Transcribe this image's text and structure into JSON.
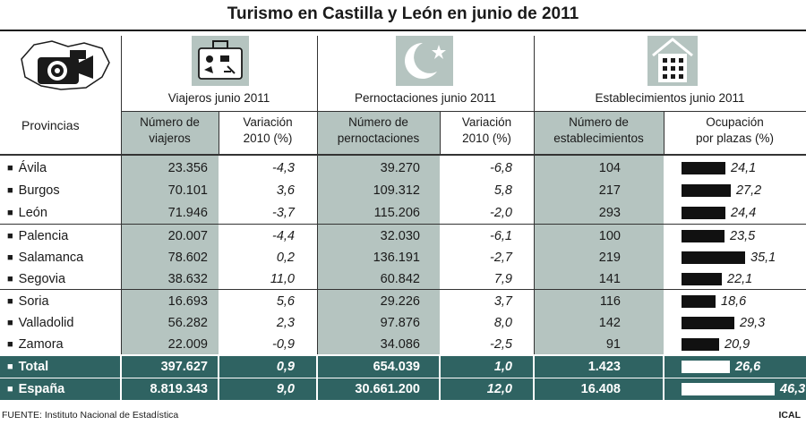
{
  "chart_data": {
    "type": "table",
    "title": "Turismo en Castilla y León en junio de 2011",
    "row_header": "Provincias",
    "groups": [
      {
        "label": "Viajeros junio 2011",
        "icon": "suitcase-icon"
      },
      {
        "label": "Pernoctaciones junio 2011",
        "icon": "moon-star-icon"
      },
      {
        "label": "Establecimientos junio 2011",
        "icon": "building-icon"
      }
    ],
    "columns": [
      {
        "key": "viajeros",
        "line1": "Número de",
        "line2": "viajeros"
      },
      {
        "key": "var_viajeros",
        "line1": "Variación",
        "line2": "2010 (%)"
      },
      {
        "key": "pernoctaciones",
        "line1": "Número de",
        "line2": "pernoctaciones"
      },
      {
        "key": "var_pernoctaciones",
        "line1": "Variación",
        "line2": "2010 (%)"
      },
      {
        "key": "establecimientos",
        "line1": "Número de",
        "line2": "establecimientos"
      },
      {
        "key": "ocupacion",
        "line1": "Ocupación",
        "line2": "por plazas (%)"
      }
    ],
    "rows": [
      {
        "provincia": "Ávila",
        "viajeros": "23.356",
        "var_viajeros": "-4,3",
        "pernoctaciones": "39.270",
        "var_pernoctaciones": "-6,8",
        "establecimientos": "104",
        "ocupacion": "24,1",
        "ocupacion_value": 24.1
      },
      {
        "provincia": "Burgos",
        "viajeros": "70.101",
        "var_viajeros": "3,6",
        "pernoctaciones": "109.312",
        "var_pernoctaciones": "5,8",
        "establecimientos": "217",
        "ocupacion": "27,2",
        "ocupacion_value": 27.2
      },
      {
        "provincia": "León",
        "viajeros": "71.946",
        "var_viajeros": "-3,7",
        "pernoctaciones": "115.206",
        "var_pernoctaciones": "-2,0",
        "establecimientos": "293",
        "ocupacion": "24,4",
        "ocupacion_value": 24.4
      },
      {
        "provincia": "Palencia",
        "viajeros": "20.007",
        "var_viajeros": "-4,4",
        "pernoctaciones": "32.030",
        "var_pernoctaciones": "-6,1",
        "establecimientos": "100",
        "ocupacion": "23,5",
        "ocupacion_value": 23.5
      },
      {
        "provincia": "Salamanca",
        "viajeros": "78.602",
        "var_viajeros": "0,2",
        "pernoctaciones": "136.191",
        "var_pernoctaciones": "-2,7",
        "establecimientos": "219",
        "ocupacion": "35,1",
        "ocupacion_value": 35.1
      },
      {
        "provincia": "Segovia",
        "viajeros": "38.632",
        "var_viajeros": "11,0",
        "pernoctaciones": "60.842",
        "var_pernoctaciones": "7,9",
        "establecimientos": "141",
        "ocupacion": "22,1",
        "ocupacion_value": 22.1
      },
      {
        "provincia": "Soria",
        "viajeros": "16.693",
        "var_viajeros": "5,6",
        "pernoctaciones": "29.226",
        "var_pernoctaciones": "3,7",
        "establecimientos": "116",
        "ocupacion": "18,6",
        "ocupacion_value": 18.6
      },
      {
        "provincia": "Valladolid",
        "viajeros": "56.282",
        "var_viajeros": "2,3",
        "pernoctaciones": "97.876",
        "var_pernoctaciones": "8,0",
        "establecimientos": "142",
        "ocupacion": "29,3",
        "ocupacion_value": 29.3
      },
      {
        "provincia": "Zamora",
        "viajeros": "22.009",
        "var_viajeros": "-0,9",
        "pernoctaciones": "34.086",
        "var_pernoctaciones": "-2,5",
        "establecimientos": "91",
        "ocupacion": "20,9",
        "ocupacion_value": 20.9
      }
    ],
    "totals": [
      {
        "provincia": "Total",
        "viajeros": "397.627",
        "var_viajeros": "0,9",
        "pernoctaciones": "654.039",
        "var_pernoctaciones": "1,0",
        "establecimientos": "1.423",
        "ocupacion": "26,6",
        "ocupacion_value": 26.6
      },
      {
        "provincia": "España",
        "viajeros": "8.819.343",
        "var_viajeros": "9,0",
        "pernoctaciones": "30.661.200",
        "var_pernoctaciones": "12,0",
        "establecimientos": "16.408",
        "ocupacion": "46,3",
        "ocupacion_value": 46.3
      }
    ],
    "bar_scale_max": 46.3
  },
  "footer": {
    "source": "FUENTE: Instituto Nacional de Estadística",
    "brand": "ICAL"
  },
  "colors": {
    "header_grey": "#b5c4c0",
    "total_band": "#2f6362"
  }
}
